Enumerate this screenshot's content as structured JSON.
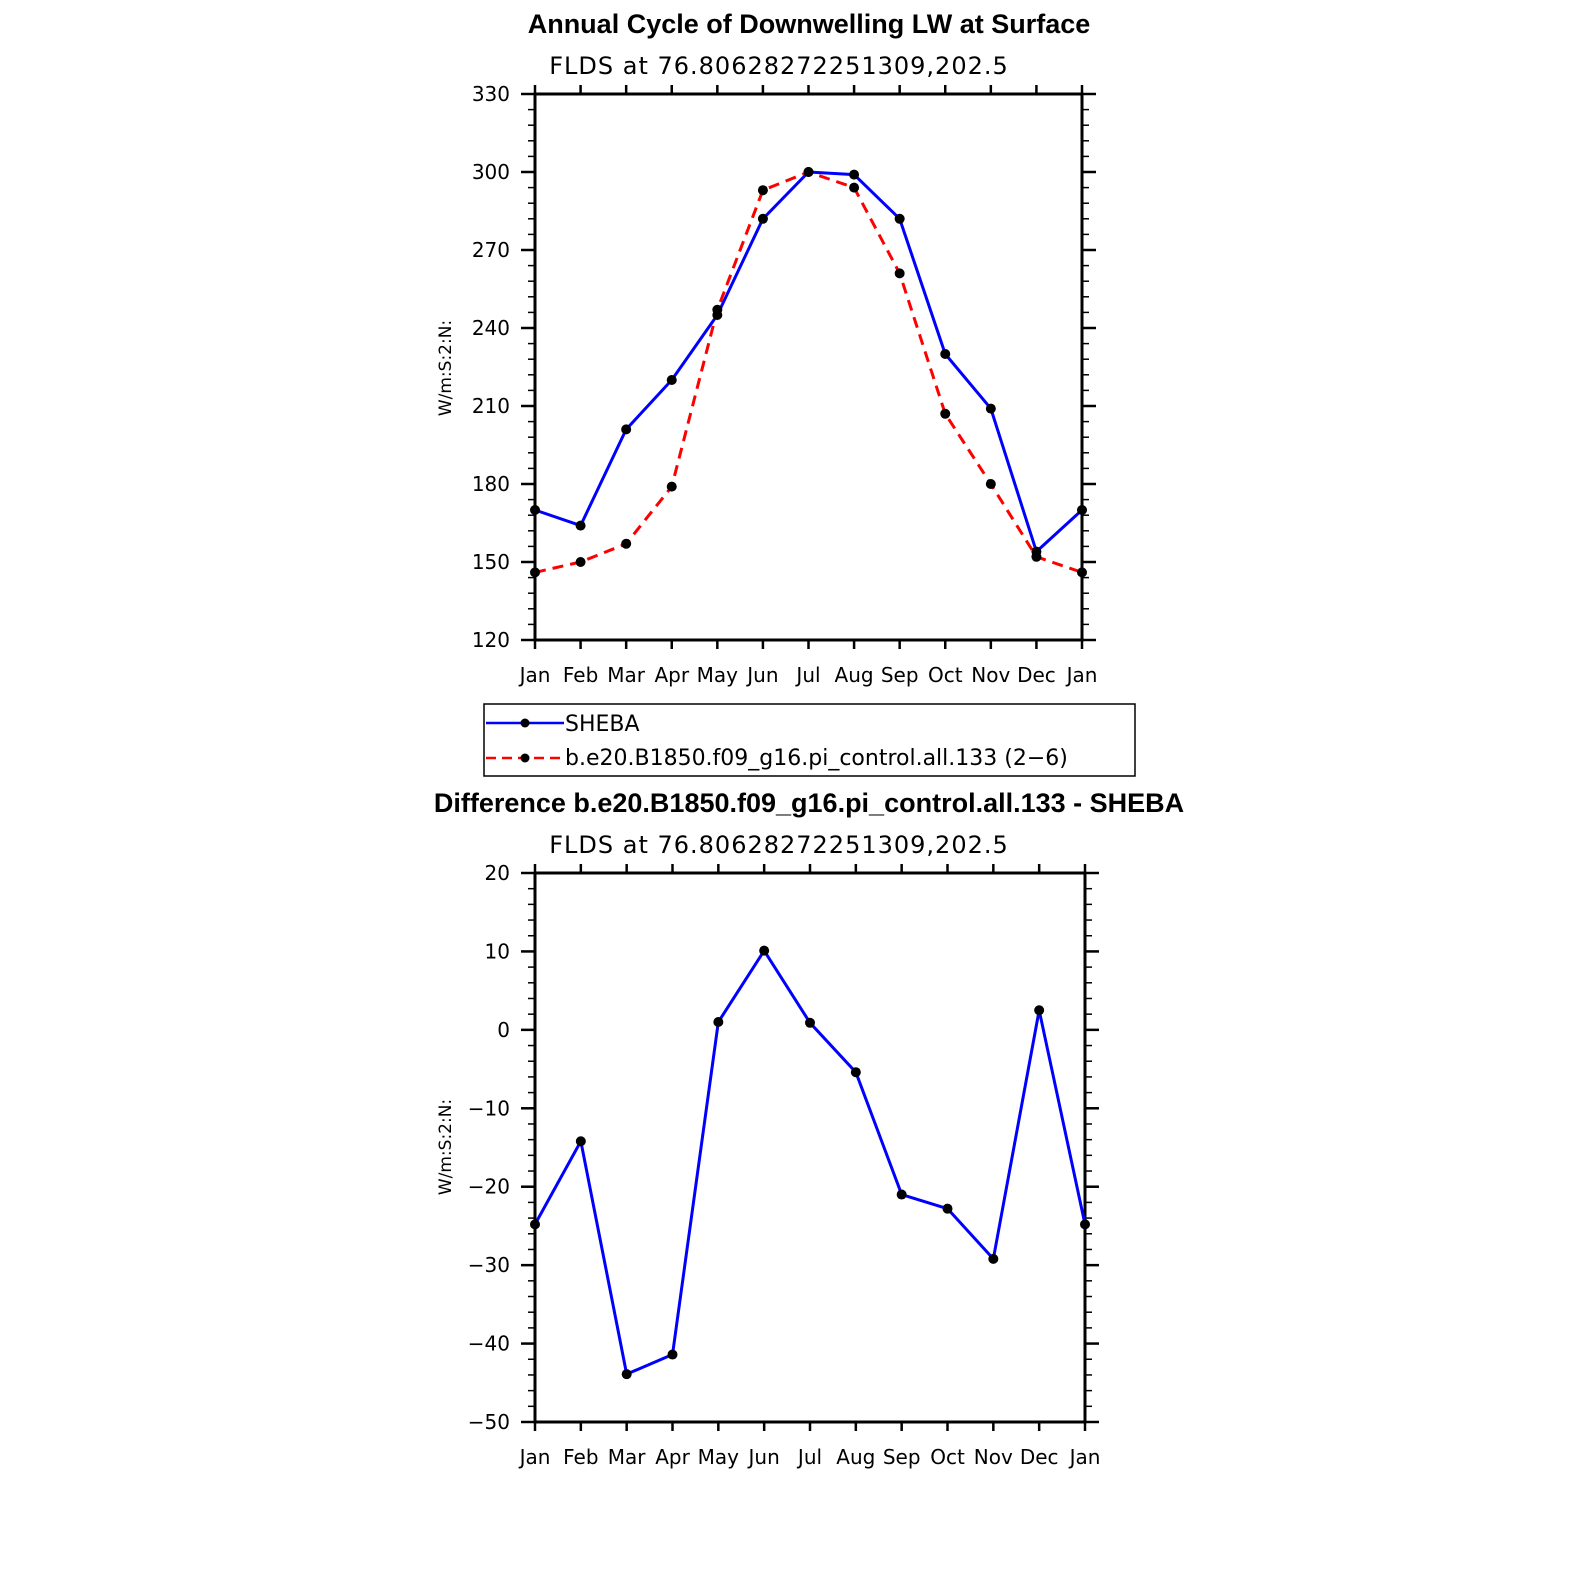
{
  "colors": {
    "sheba": "#0000ff",
    "model": "#ff0000",
    "marker": "#000000",
    "axis": "#000000",
    "background": "#ffffff"
  },
  "chart_data": [
    {
      "type": "line",
      "title": "Annual Cycle of Downwelling LW at Surface",
      "subtitle": "FLDS at 76.80628272251309,202.5",
      "xlabel": "",
      "ylabel": "W/m:S:2:N:",
      "categories": [
        "Jan",
        "Feb",
        "Mar",
        "Apr",
        "May",
        "Jun",
        "Jul",
        "Aug",
        "Sep",
        "Oct",
        "Nov",
        "Dec",
        "Jan"
      ],
      "ylim": [
        120,
        330
      ],
      "yticks": [
        120,
        150,
        180,
        210,
        240,
        270,
        300,
        330
      ],
      "grid": false,
      "legend_position": "below",
      "series": [
        {
          "name": "SHEBA",
          "style": "solid",
          "color": "#0000ff",
          "values": [
            170,
            164,
            201,
            220,
            245,
            282,
            300,
            299,
            282,
            230,
            209,
            154,
            170
          ]
        },
        {
          "name": "b.e20.B1850.f09_g16.pi_control.all.133 (2−6)",
          "style": "dashed",
          "color": "#ff0000",
          "values": [
            146,
            150,
            157,
            179,
            247,
            293,
            300,
            294,
            261,
            207,
            180,
            152,
            146
          ]
        }
      ]
    },
    {
      "type": "line",
      "title": "Difference b.e20.B1850.f09_g16.pi_control.all.133 - SHEBA",
      "subtitle": "FLDS at 76.80628272251309,202.5",
      "xlabel": "",
      "ylabel": "W/m:S:2:N:",
      "categories": [
        "Jan",
        "Feb",
        "Mar",
        "Apr",
        "May",
        "Jun",
        "Jul",
        "Aug",
        "Sep",
        "Oct",
        "Nov",
        "Dec",
        "Jan"
      ],
      "ylim": [
        -50,
        20
      ],
      "yticks": [
        -50,
        -40,
        -30,
        -20,
        -10,
        0,
        10,
        20
      ],
      "ytick_labels": [
        "−50",
        "−40",
        "−30",
        "−20",
        "−10",
        "0",
        "10",
        "20"
      ],
      "grid": false,
      "series": [
        {
          "style": "solid",
          "color": "#0000ff",
          "values": [
            -24.8,
            -14.2,
            -43.9,
            -41.4,
            1.0,
            10.1,
            0.9,
            -5.4,
            -21.0,
            -22.8,
            -29.2,
            2.5,
            -24.8
          ]
        }
      ]
    }
  ]
}
